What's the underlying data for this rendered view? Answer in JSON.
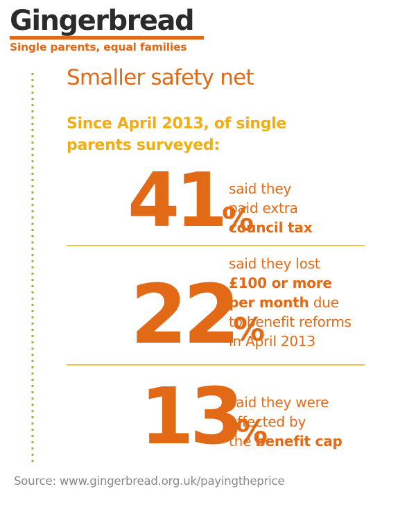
{
  "brand": {
    "name": "Gingerbread",
    "tagline": "Single parents, equal families"
  },
  "colors": {
    "accent": "#e26a16",
    "highlight": "#f0ae14",
    "dots": "#8ab83a",
    "text_dark": "#2b2b2b",
    "source_grey": "#888888"
  },
  "headline": "Smaller safety net",
  "intro": "Since April 2013, of single parents surveyed:",
  "stats": [
    {
      "number": "41",
      "percent_sign": "%",
      "line1": "said they",
      "line2": "paid extra",
      "line3_bold": "council tax"
    },
    {
      "number": "22",
      "percent_sign": "%",
      "line1": "said they lost",
      "line2_bold": "£100 or more",
      "line3_bold": "per month",
      "line3_rest": " due",
      "line4": "to benefit reforms",
      "line5": "in April 2013"
    },
    {
      "number": "13",
      "percent_sign": "%",
      "line1": "said they were",
      "line2": "affected by",
      "line3_pre": "the ",
      "line3_bold": "benefit cap"
    }
  ],
  "source": "Source: www.gingerbread.org.uk/payingtheprice"
}
